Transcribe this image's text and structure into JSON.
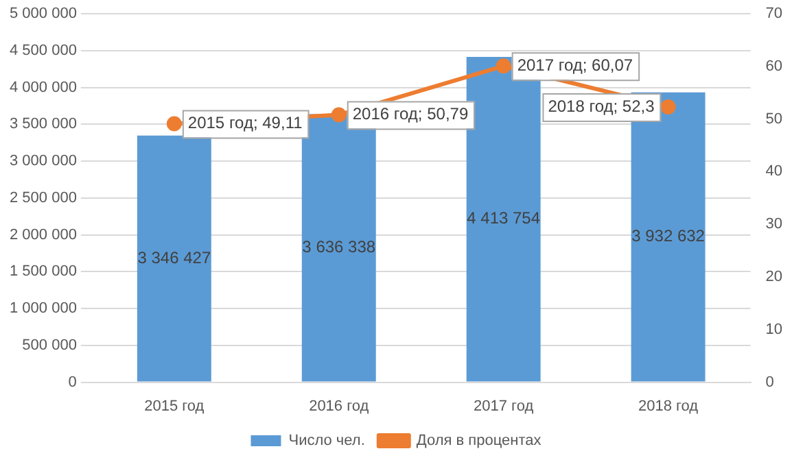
{
  "chart_data": {
    "type": "bar",
    "categories": [
      "2015 год",
      "2016 год",
      "2017 год",
      "2018 год"
    ],
    "series": [
      {
        "name": "Число чел.",
        "color": "#5b9bd5",
        "values": [
          3346427,
          3636338,
          4413754,
          3932632
        ],
        "value_labels": [
          "3 346 427",
          "3 636 338",
          "4 413 754",
          "3 932 632"
        ]
      },
      {
        "name": "Доля в процентах",
        "type": "line",
        "axis": "y2",
        "color": "#ed7d31",
        "values": [
          49.11,
          50.79,
          60.07,
          52.3
        ],
        "value_labels": [
          "2015 год; 49,11",
          "2016 год; 50,79",
          "2017 год; 60,07",
          "2018 год; 52,3"
        ]
      }
    ],
    "ylim": [
      0,
      5000000
    ],
    "yticks": [
      {
        "value": 0,
        "label": "0"
      },
      {
        "value": 500000,
        "label": "500 000"
      },
      {
        "value": 1000000,
        "label": "1 000 000"
      },
      {
        "value": 1500000,
        "label": "1 500 000"
      },
      {
        "value": 2000000,
        "label": "2 000 000"
      },
      {
        "value": 2500000,
        "label": "2 500 000"
      },
      {
        "value": 3000000,
        "label": "3 000 000"
      },
      {
        "value": 3500000,
        "label": "3 500 000"
      },
      {
        "value": 4000000,
        "label": "4 000 000"
      },
      {
        "value": 4500000,
        "label": "4 500 000"
      },
      {
        "value": 5000000,
        "label": "5 000 000"
      }
    ],
    "y2lim": [
      0,
      70
    ],
    "y2ticks": [
      0,
      10,
      20,
      30,
      40,
      50,
      60,
      70
    ],
    "grid": "y",
    "legend": "bottom",
    "marker": "circle",
    "line_style": "solid"
  }
}
